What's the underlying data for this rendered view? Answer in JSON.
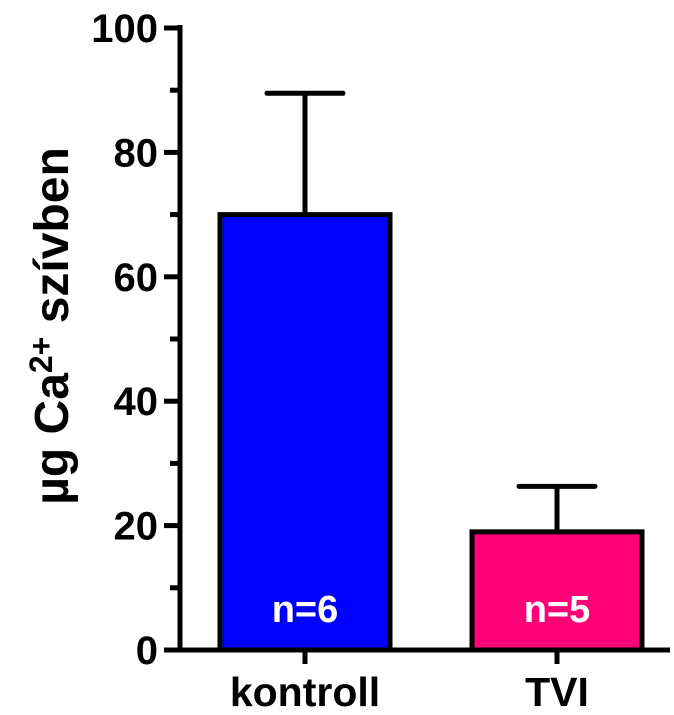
{
  "chart_data": {
    "type": "bar",
    "title": "",
    "xlabel": "",
    "ylabel": {
      "prefix": "µg Ca",
      "superscript": "2+",
      "suffix": " szívben"
    },
    "ylim": [
      0,
      100
    ],
    "yticks": [
      0,
      20,
      40,
      60,
      80,
      100
    ],
    "y_minor_step": 10,
    "grid": false,
    "legend": "none",
    "categories": [
      "kontroll",
      "TVI"
    ],
    "values": [
      70,
      19
    ],
    "errors": [
      19.5,
      7.3
    ],
    "error_bars": "upper only",
    "n_labels": [
      "n=6",
      "n=5"
    ],
    "colors": [
      "#0000ff",
      "#ff0077"
    ]
  }
}
